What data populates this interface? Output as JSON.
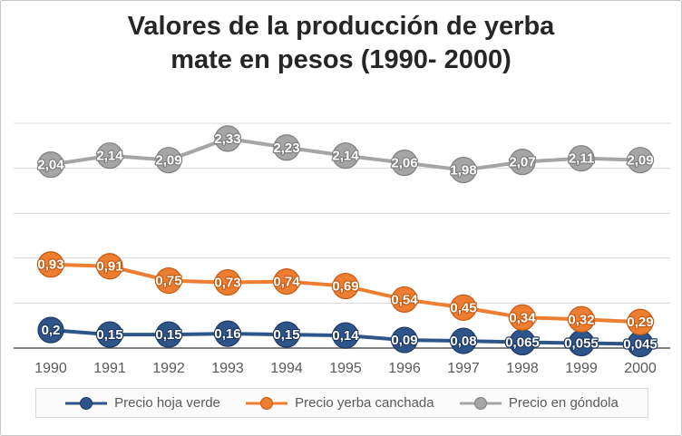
{
  "chart_data": {
    "type": "line",
    "title_lines": [
      "Valores de la producción de yerba",
      "mate en pesos (1990- 2000)"
    ],
    "categories": [
      "1990",
      "1991",
      "1992",
      "1993",
      "1994",
      "1995",
      "1996",
      "1997",
      "1998",
      "1999",
      "2000"
    ],
    "xlabel": "",
    "ylabel": "",
    "ylim": [
      0,
      2.5
    ],
    "grid_step": 0.5,
    "grid_on": true,
    "legend_position": "bottom",
    "series": [
      {
        "name": "Precio hoja verde",
        "color": "#2e558a",
        "edge": "#1f3864",
        "values": [
          0.2,
          0.15,
          0.15,
          0.16,
          0.15,
          0.14,
          0.09,
          0.08,
          0.065,
          0.055,
          0.045
        ],
        "labels": [
          "0,2",
          "0,15",
          "0,15",
          "0,16",
          "0,15",
          "0,14",
          "0,09",
          "0,08",
          "0,065",
          "0,055",
          "0,045"
        ]
      },
      {
        "name": "Precio yerba canchada",
        "color": "#ed7d31",
        "edge": "#c55a11",
        "values": [
          0.93,
          0.91,
          0.75,
          0.73,
          0.74,
          0.69,
          0.54,
          0.45,
          0.34,
          0.32,
          0.29
        ],
        "labels": [
          "0,93",
          "0,91",
          "0,75",
          "0,73",
          "0,74",
          "0,69",
          "0,54",
          "0,45",
          "0,34",
          "0,32",
          "0,29"
        ]
      },
      {
        "name": "Precio en góndola",
        "color": "#a5a5a5",
        "edge": "#7f7f7f",
        "values": [
          2.04,
          2.14,
          2.09,
          2.33,
          2.23,
          2.14,
          2.06,
          1.98,
          2.07,
          2.11,
          2.09
        ],
        "labels": [
          "2,04",
          "2,14",
          "2,09",
          "2,33",
          "2,23",
          "2,14",
          "2,06",
          "1,98",
          "2,07",
          "2,11",
          "2,09"
        ]
      }
    ],
    "colors": {
      "grid": "#d9d9d9",
      "axis": "#595959",
      "tick_text": "#595959",
      "label_text": "#ffffff",
      "title_text": "#262626"
    }
  }
}
